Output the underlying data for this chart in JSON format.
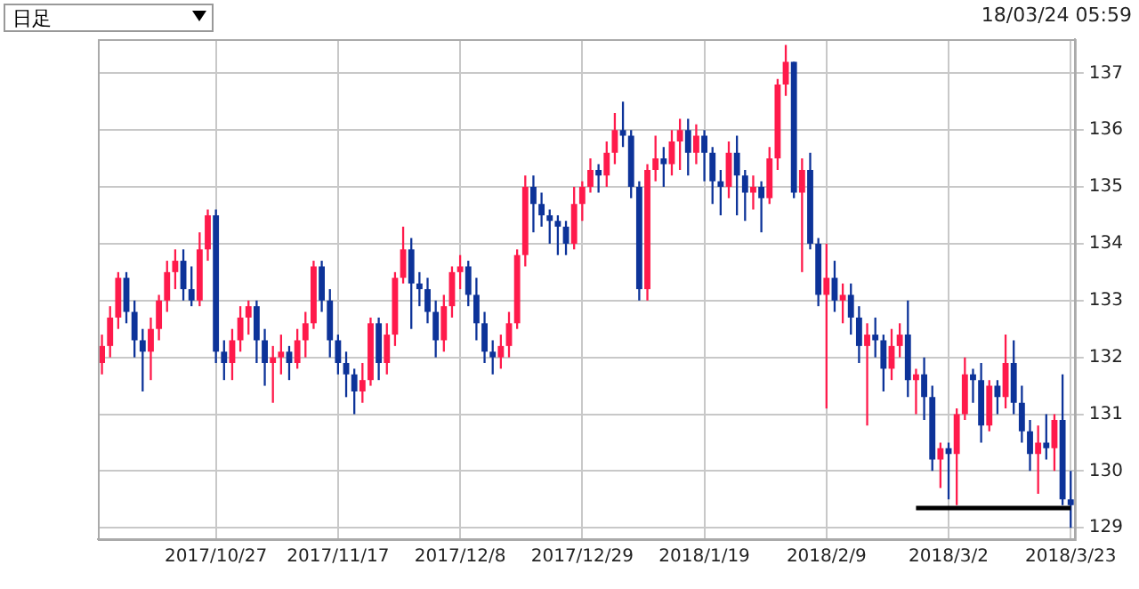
{
  "chart_data": {
    "type": "candlestick",
    "annotations": [
      "日足",
      "18/03/24 05:59"
    ],
    "categories": [
      null,
      null,
      null,
      null,
      null,
      null,
      null,
      null,
      null,
      null,
      null,
      null,
      null,
      null,
      "2017/10/27",
      null,
      null,
      null,
      null,
      null,
      null,
      null,
      null,
      null,
      null,
      null,
      null,
      null,
      null,
      "2017/11/17",
      null,
      null,
      null,
      null,
      null,
      null,
      null,
      null,
      null,
      null,
      null,
      null,
      null,
      null,
      "2017/12/8",
      null,
      null,
      null,
      null,
      null,
      null,
      null,
      null,
      null,
      null,
      null,
      null,
      null,
      null,
      "2017/12/29",
      null,
      null,
      null,
      null,
      null,
      null,
      null,
      null,
      null,
      null,
      null,
      null,
      null,
      null,
      "2018/1/19",
      null,
      null,
      null,
      null,
      null,
      null,
      null,
      null,
      null,
      null,
      null,
      null,
      null,
      null,
      "2018/2/9",
      null,
      null,
      null,
      null,
      null,
      null,
      null,
      null,
      null,
      null,
      null,
      null,
      null,
      null,
      "2018/3/2",
      null,
      null,
      null,
      null,
      null,
      null,
      null,
      null,
      null,
      null,
      null,
      null,
      null,
      null,
      "2018/3/23"
    ],
    "series": [
      {
        "ohlc": [
          [
            131.9,
            132.4,
            131.7,
            132.2
          ],
          [
            132.2,
            132.9,
            132.0,
            132.7
          ],
          [
            132.7,
            133.5,
            132.5,
            133.4
          ],
          [
            133.4,
            133.5,
            132.6,
            132.8
          ],
          [
            132.8,
            133.0,
            132.0,
            132.3
          ],
          [
            132.3,
            132.5,
            131.4,
            132.1
          ],
          [
            132.1,
            132.7,
            131.6,
            132.5
          ],
          [
            132.5,
            133.1,
            132.3,
            133.0
          ],
          [
            133.0,
            133.7,
            132.8,
            133.5
          ],
          [
            133.5,
            133.9,
            133.2,
            133.7
          ],
          [
            133.7,
            133.9,
            133.0,
            133.2
          ],
          [
            133.2,
            133.6,
            132.9,
            133.0
          ],
          [
            133.0,
            134.2,
            132.9,
            133.9
          ],
          [
            133.9,
            134.6,
            133.7,
            134.5
          ],
          [
            134.5,
            134.6,
            131.9,
            132.1
          ],
          [
            132.1,
            132.3,
            131.6,
            131.9
          ],
          [
            131.9,
            132.5,
            131.6,
            132.3
          ],
          [
            132.3,
            132.9,
            132.1,
            132.7
          ],
          [
            132.7,
            133.0,
            132.4,
            132.9
          ],
          [
            132.9,
            133.0,
            131.9,
            132.3
          ],
          [
            132.3,
            132.5,
            131.5,
            131.9
          ],
          [
            131.9,
            132.2,
            131.2,
            132.0
          ],
          [
            132.0,
            132.4,
            131.7,
            132.1
          ],
          [
            132.1,
            132.2,
            131.6,
            131.9
          ],
          [
            131.9,
            132.5,
            131.8,
            132.3
          ],
          [
            132.3,
            132.8,
            132.0,
            132.6
          ],
          [
            132.6,
            133.7,
            132.5,
            133.6
          ],
          [
            133.6,
            133.7,
            132.8,
            133.0
          ],
          [
            133.0,
            133.2,
            132.0,
            132.3
          ],
          [
            132.3,
            132.4,
            131.7,
            131.9
          ],
          [
            131.9,
            132.1,
            131.3,
            131.7
          ],
          [
            131.7,
            131.8,
            131.0,
            131.4
          ],
          [
            131.4,
            131.9,
            131.2,
            131.6
          ],
          [
            131.6,
            132.7,
            131.5,
            132.6
          ],
          [
            132.6,
            132.7,
            131.6,
            131.9
          ],
          [
            131.9,
            132.6,
            131.7,
            132.4
          ],
          [
            132.4,
            133.5,
            132.2,
            133.4
          ],
          [
            133.4,
            134.3,
            133.3,
            133.9
          ],
          [
            133.9,
            134.1,
            132.5,
            133.3
          ],
          [
            133.3,
            133.5,
            132.9,
            133.2
          ],
          [
            133.2,
            133.4,
            132.6,
            132.8
          ],
          [
            132.8,
            133.0,
            132.0,
            132.3
          ],
          [
            132.3,
            133.1,
            132.1,
            132.9
          ],
          [
            132.9,
            133.6,
            132.7,
            133.5
          ],
          [
            133.5,
            133.8,
            133.2,
            133.6
          ],
          [
            133.6,
            133.7,
            132.9,
            133.1
          ],
          [
            133.1,
            133.4,
            132.3,
            132.6
          ],
          [
            132.6,
            132.8,
            131.9,
            132.1
          ],
          [
            132.1,
            132.3,
            131.7,
            132.0
          ],
          [
            132.0,
            132.4,
            131.8,
            132.2
          ],
          [
            132.2,
            132.8,
            132.0,
            132.6
          ],
          [
            132.6,
            133.9,
            132.5,
            133.8
          ],
          [
            133.8,
            135.2,
            133.6,
            135.0
          ],
          [
            135.0,
            135.2,
            134.2,
            134.7
          ],
          [
            134.7,
            134.9,
            134.3,
            134.5
          ],
          [
            134.5,
            134.6,
            134.0,
            134.4
          ],
          [
            134.4,
            134.5,
            133.8,
            134.3
          ],
          [
            134.3,
            134.4,
            133.8,
            134.0
          ],
          [
            134.0,
            135.0,
            133.9,
            134.7
          ],
          [
            134.7,
            135.1,
            134.4,
            135.0
          ],
          [
            135.0,
            135.5,
            134.9,
            135.3
          ],
          [
            135.3,
            135.4,
            134.9,
            135.2
          ],
          [
            135.2,
            135.8,
            135.0,
            135.6
          ],
          [
            135.6,
            136.3,
            135.4,
            136.0
          ],
          [
            136.0,
            136.5,
            135.7,
            135.9
          ],
          [
            135.9,
            136.0,
            134.8,
            135.0
          ],
          [
            135.0,
            135.1,
            133.0,
            133.2
          ],
          [
            133.2,
            135.4,
            133.0,
            135.3
          ],
          [
            135.3,
            135.9,
            135.1,
            135.5
          ],
          [
            135.5,
            135.7,
            135.0,
            135.4
          ],
          [
            135.4,
            136.0,
            135.2,
            135.8
          ],
          [
            135.8,
            136.2,
            135.3,
            136.0
          ],
          [
            136.0,
            136.2,
            135.2,
            135.6
          ],
          [
            135.6,
            136.1,
            135.4,
            135.9
          ],
          [
            135.9,
            136.0,
            135.1,
            135.6
          ],
          [
            135.6,
            135.7,
            134.7,
            135.1
          ],
          [
            135.1,
            135.3,
            134.5,
            135.0
          ],
          [
            135.0,
            135.8,
            134.8,
            135.6
          ],
          [
            135.6,
            135.9,
            134.5,
            135.2
          ],
          [
            135.2,
            135.3,
            134.4,
            134.9
          ],
          [
            134.9,
            135.2,
            134.6,
            135.0
          ],
          [
            135.0,
            135.1,
            134.2,
            134.8
          ],
          [
            134.8,
            135.7,
            134.7,
            135.5
          ],
          [
            135.5,
            136.9,
            135.3,
            136.8
          ],
          [
            136.8,
            137.5,
            136.6,
            137.2
          ],
          [
            137.2,
            137.2,
            134.8,
            134.9
          ],
          [
            134.9,
            135.5,
            133.5,
            135.3
          ],
          [
            135.3,
            135.6,
            133.9,
            134.0
          ],
          [
            134.0,
            134.1,
            132.9,
            133.1
          ],
          [
            133.1,
            134.0,
            131.1,
            133.4
          ],
          [
            133.4,
            133.7,
            132.8,
            133.0
          ],
          [
            133.0,
            133.3,
            132.6,
            133.1
          ],
          [
            133.1,
            133.3,
            132.4,
            132.7
          ],
          [
            132.7,
            132.9,
            131.9,
            132.2
          ],
          [
            132.2,
            132.6,
            130.8,
            132.4
          ],
          [
            132.4,
            132.7,
            132.0,
            132.3
          ],
          [
            132.3,
            132.4,
            131.4,
            131.8
          ],
          [
            131.8,
            132.5,
            131.6,
            132.2
          ],
          [
            132.2,
            132.6,
            132.0,
            132.4
          ],
          [
            132.4,
            133.0,
            131.3,
            131.6
          ],
          [
            131.6,
            131.8,
            131.0,
            131.7
          ],
          [
            131.7,
            132.0,
            130.9,
            131.3
          ],
          [
            131.3,
            131.5,
            130.0,
            130.2
          ],
          [
            130.2,
            130.5,
            129.7,
            130.4
          ],
          [
            130.4,
            130.5,
            129.5,
            130.3
          ],
          [
            130.3,
            131.1,
            129.4,
            131.0
          ],
          [
            131.0,
            132.0,
            130.9,
            131.7
          ],
          [
            131.7,
            131.8,
            131.2,
            131.6
          ],
          [
            131.6,
            131.9,
            130.5,
            130.8
          ],
          [
            130.8,
            131.6,
            130.7,
            131.5
          ],
          [
            131.5,
            131.6,
            131.0,
            131.3
          ],
          [
            131.3,
            132.4,
            131.1,
            131.9
          ],
          [
            131.9,
            132.3,
            131.0,
            131.2
          ],
          [
            131.2,
            131.5,
            130.5,
            130.7
          ],
          [
            130.7,
            130.9,
            130.0,
            130.3
          ],
          [
            130.3,
            130.8,
            129.6,
            130.5
          ],
          [
            130.5,
            131.0,
            130.2,
            130.4
          ],
          [
            130.4,
            131.0,
            130.0,
            130.9
          ],
          [
            130.9,
            131.7,
            129.4,
            129.5
          ],
          [
            129.5,
            130.0,
            129.0,
            129.4
          ]
        ],
        "colors": [
          "#ff1a4b",
          "#ff1a4b",
          "#ff1a4b",
          "#0d3399",
          "#0d3399",
          "#0d3399",
          "#ff1a4b",
          "#ff1a4b",
          "#ff1a4b",
          "#ff1a4b",
          "#0d3399",
          "#0d3399",
          "#ff1a4b",
          "#ff1a4b",
          "#0d3399",
          "#0d3399",
          "#ff1a4b",
          "#ff1a4b",
          "#ff1a4b",
          "#0d3399",
          "#0d3399",
          "#ff1a4b",
          "#ff1a4b",
          "#0d3399",
          "#ff1a4b",
          "#ff1a4b",
          "#ff1a4b",
          "#0d3399",
          "#0d3399",
          "#0d3399",
          "#0d3399",
          "#0d3399",
          "#ff1a4b",
          "#ff1a4b",
          "#0d3399",
          "#ff1a4b",
          "#ff1a4b",
          "#ff1a4b",
          "#0d3399",
          "#0d3399",
          "#0d3399",
          "#0d3399",
          "#ff1a4b",
          "#ff1a4b",
          "#ff1a4b",
          "#0d3399",
          "#0d3399",
          "#0d3399",
          "#0d3399",
          "#ff1a4b",
          "#ff1a4b",
          "#ff1a4b",
          "#ff1a4b",
          "#0d3399",
          "#0d3399",
          "#0d3399",
          "#0d3399",
          "#0d3399",
          "#ff1a4b",
          "#ff1a4b",
          "#ff1a4b",
          "#0d3399",
          "#ff1a4b",
          "#ff1a4b",
          "#0d3399",
          "#0d3399",
          "#0d3399",
          "#ff1a4b",
          "#ff1a4b",
          "#0d3399",
          "#ff1a4b",
          "#ff1a4b",
          "#0d3399",
          "#ff1a4b",
          "#0d3399",
          "#0d3399",
          "#0d3399",
          "#ff1a4b",
          "#0d3399",
          "#0d3399",
          "#ff1a4b",
          "#0d3399",
          "#ff1a4b",
          "#ff1a4b",
          "#ff1a4b",
          "#0d3399",
          "#ff1a4b",
          "#0d3399",
          "#0d3399",
          "#ff1a4b",
          "#0d3399",
          "#ff1a4b",
          "#0d3399",
          "#0d3399",
          "#ff1a4b",
          "#0d3399",
          "#0d3399",
          "#ff1a4b",
          "#ff1a4b",
          "#0d3399",
          "#ff1a4b",
          "#0d3399",
          "#0d3399",
          "#ff1a4b",
          "#0d3399",
          "#ff1a4b",
          "#ff1a4b",
          "#0d3399",
          "#0d3399",
          "#ff1a4b",
          "#0d3399",
          "#ff1a4b",
          "#0d3399",
          "#0d3399",
          "#0d3399",
          "#ff1a4b",
          "#0d3399",
          "#ff1a4b",
          "#0d3399",
          "#0d3399"
        ]
      },
      {
        "type": "line",
        "color": "#000000",
        "values": [
          null,
          null,
          null,
          null,
          null,
          null,
          null,
          null,
          null,
          null,
          null,
          null,
          null,
          null,
          null,
          null,
          null,
          null,
          null,
          null,
          null,
          null,
          null,
          null,
          null,
          null,
          null,
          null,
          null,
          null,
          null,
          null,
          null,
          null,
          null,
          null,
          null,
          null,
          null,
          null,
          null,
          null,
          null,
          null,
          null,
          null,
          null,
          null,
          null,
          null,
          null,
          null,
          null,
          null,
          null,
          null,
          null,
          null,
          null,
          null,
          null,
          null,
          null,
          null,
          null,
          null,
          null,
          null,
          null,
          null,
          null,
          null,
          null,
          null,
          null,
          null,
          null,
          null,
          null,
          null,
          null,
          null,
          null,
          null,
          null,
          null,
          null,
          null,
          null,
          null,
          null,
          null,
          null,
          null,
          null,
          null,
          null,
          null,
          null,
          null,
          129.35,
          129.35,
          129.35,
          129.35,
          129.35,
          129.35,
          129.35,
          129.35,
          129.35,
          129.35,
          129.35,
          129.35,
          129.35,
          129.35,
          129.35,
          129.35,
          129.35,
          129.35,
          129.35,
          129.35
        ]
      }
    ],
    "ylim": [
      128.8,
      137.6
    ],
    "yticks": [
      129,
      130,
      131,
      132,
      133,
      134,
      135,
      136,
      137
    ],
    "grid": true
  }
}
